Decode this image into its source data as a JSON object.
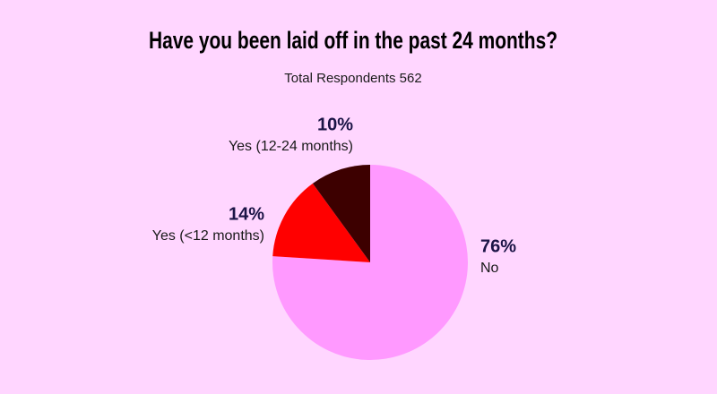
{
  "chart_data": {
    "type": "pie",
    "title": "Have you been laid off in the past 24 months?",
    "subtitle": "Total Respondents 562",
    "categories": [
      "No",
      "Yes (<12 months)",
      "Yes (12-24 months)"
    ],
    "values": [
      76,
      14,
      10
    ],
    "value_labels": [
      "76%",
      "14%",
      "10%"
    ],
    "colors": [
      "#ff99ff",
      "#ff0000",
      "#3d0000"
    ]
  }
}
